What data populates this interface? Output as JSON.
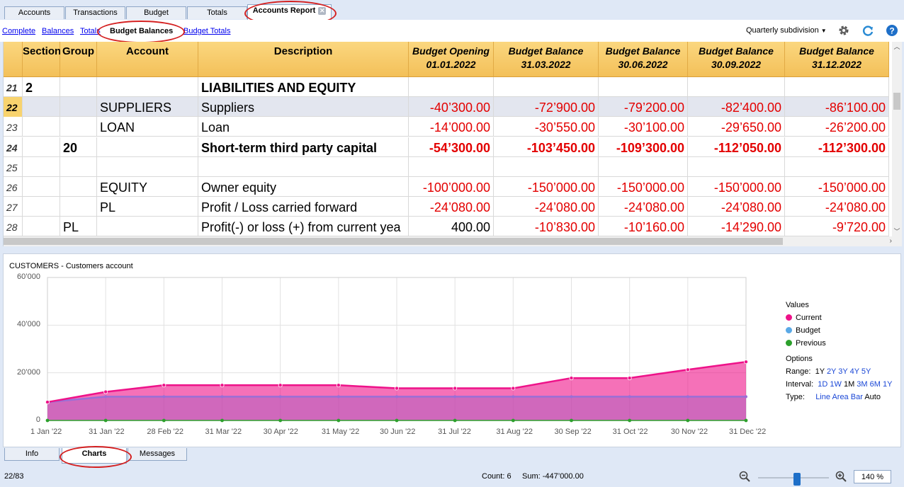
{
  "top_tabs": [
    {
      "label": "Accounts",
      "active": false
    },
    {
      "label": "Transactions",
      "active": false
    },
    {
      "label": "Budget",
      "active": false
    },
    {
      "label": "Totals",
      "active": false
    },
    {
      "label": "Accounts Report",
      "active": true
    }
  ],
  "sub_nav": {
    "links": [
      "Complete",
      "Balances",
      "Totals",
      "Budget Balances",
      "Budget Totals"
    ],
    "active": "Budget Balances",
    "subdivision": "Quarterly subdivision"
  },
  "table": {
    "columns": [
      "Section",
      "Group",
      "Account",
      "Description"
    ],
    "budget_columns": [
      {
        "line1": "Budget Opening",
        "line2": "01.01.2022"
      },
      {
        "line1": "Budget Balance",
        "line2": "31.03.2022"
      },
      {
        "line1": "Budget Balance",
        "line2": "30.06.2022"
      },
      {
        "line1": "Budget Balance",
        "line2": "30.09.2022"
      },
      {
        "line1": "Budget Balance",
        "line2": "31.12.2022"
      }
    ],
    "rows": [
      {
        "n": "21",
        "section": "2",
        "group": "",
        "account": "",
        "desc": "LIABILITIES AND EQUITY",
        "vals": [
          "",
          "",
          "",
          "",
          ""
        ],
        "bold": true,
        "selected": false
      },
      {
        "n": "22",
        "section": "",
        "group": "",
        "account": "SUPPLIERS",
        "desc": "Suppliers",
        "vals": [
          "-40’300.00",
          "-72’900.00",
          "-79’200.00",
          "-82’400.00",
          "-86’100.00"
        ],
        "bold": false,
        "selected": true
      },
      {
        "n": "23",
        "section": "",
        "group": "",
        "account": "LOAN",
        "desc": "Loan",
        "vals": [
          "-14’000.00",
          "-30’550.00",
          "-30’100.00",
          "-29’650.00",
          "-26’200.00"
        ],
        "bold": false,
        "selected": false
      },
      {
        "n": "24",
        "section": "",
        "group": "20",
        "account": "",
        "desc": "Short-term third party capital",
        "vals": [
          "-54’300.00",
          "-103’450.00",
          "-109’300.00",
          "-112’050.00",
          "-112’300.00"
        ],
        "bold": true,
        "selected": false
      },
      {
        "n": "25",
        "section": "",
        "group": "",
        "account": "",
        "desc": "",
        "vals": [
          "",
          "",
          "",
          "",
          ""
        ],
        "bold": false,
        "selected": false
      },
      {
        "n": "26",
        "section": "",
        "group": "",
        "account": "EQUITY",
        "desc": "Owner equity",
        "vals": [
          "-100’000.00",
          "-150’000.00",
          "-150’000.00",
          "-150’000.00",
          "-150’000.00"
        ],
        "bold": false,
        "selected": false
      },
      {
        "n": "27",
        "section": "",
        "group": "",
        "account": "PL",
        "desc": "Profit / Loss carried forward",
        "vals": [
          "-24’080.00",
          "-24’080.00",
          "-24’080.00",
          "-24’080.00",
          "-24’080.00"
        ],
        "bold": false,
        "selected": false
      },
      {
        "n": "28",
        "section": "",
        "group": "PL",
        "account": "",
        "desc": "Profit(-) or loss (+) from current yea",
        "vals": [
          "400.00",
          "-10’830.00",
          "-10’160.00",
          "-14’290.00",
          "-9’720.00"
        ],
        "bold": false,
        "selected": false
      }
    ]
  },
  "chart_data": {
    "type": "area",
    "title": "CUSTOMERS - Customers account",
    "x": [
      "1 Jan '22",
      "31 Jan '22",
      "28 Feb '22",
      "31 Mar '22",
      "30 Apr '22",
      "31 May '22",
      "30 Jun '22",
      "31 Jul '22",
      "31 Aug '22",
      "30 Sep '22",
      "31 Oct '22",
      "30 Nov '22",
      "31 Dec '22"
    ],
    "y_ticks": [
      "60’000",
      "40’000",
      "20’000",
      "0"
    ],
    "ylim": [
      0,
      60000
    ],
    "series": [
      {
        "name": "Current",
        "color": "#ee1289",
        "values": [
          7700,
          12000,
          14800,
          14800,
          14800,
          14800,
          13500,
          13500,
          13500,
          17800,
          17800,
          21300,
          24600
        ]
      },
      {
        "name": "Budget",
        "color": "#5aa9e6",
        "values": [
          7700,
          10000,
          10000,
          10000,
          10000,
          10000,
          10000,
          10000,
          10000,
          10000,
          10000,
          10000,
          10000
        ]
      },
      {
        "name": "Previous",
        "color": "#2ca02c",
        "values": [
          0,
          0,
          0,
          0,
          0,
          0,
          0,
          0,
          0,
          0,
          0,
          0,
          0
        ]
      }
    ],
    "legend_title": "Values",
    "grid": true,
    "legend_position": "right"
  },
  "chart_options": {
    "title": "Options",
    "range_label": "Range:",
    "range": [
      "1Y",
      "2Y",
      "3Y",
      "4Y",
      "5Y"
    ],
    "interval_label": "Interval:",
    "interval": [
      "1D",
      "1W",
      "1M",
      "3M",
      "6M",
      "1Y"
    ],
    "type_label": "Type:",
    "types": [
      "Line",
      "Area",
      "Bar",
      "Auto"
    ]
  },
  "bottom_tabs": [
    {
      "label": "Info",
      "active": false
    },
    {
      "label": "Charts",
      "active": true
    },
    {
      "label": "Messages",
      "active": false
    }
  ],
  "status": {
    "position": "22/83",
    "count": "Count: 6",
    "sum": "Sum: -447’000.00",
    "zoom": "140 %"
  },
  "colors": {
    "negative": "#e30000",
    "header": "#f3c059",
    "accent": "#ee1289"
  }
}
